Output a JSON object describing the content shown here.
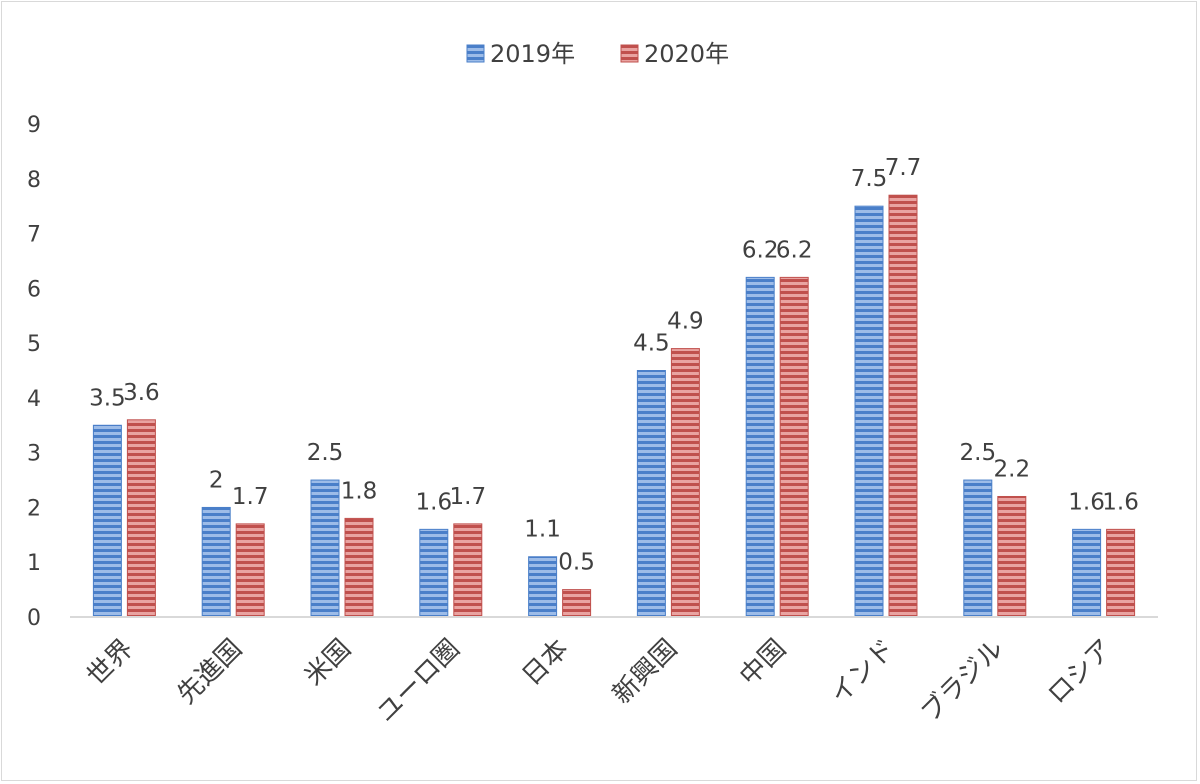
{
  "chart_data": {
    "type": "bar",
    "title": "",
    "xlabel": "",
    "ylabel": "",
    "ylim": [
      0,
      9
    ],
    "yticks": [
      0,
      1,
      2,
      3,
      4,
      5,
      6,
      7,
      8,
      9
    ],
    "legend_position": "top-center",
    "categories": [
      "世界",
      "先進国",
      "米国",
      "ユーロ圏",
      "日本",
      "新興国",
      "中国",
      "インド",
      "ブラジル",
      "ロシア"
    ],
    "series": [
      {
        "name": "2019年",
        "values": [
          3.5,
          2,
          2.5,
          1.6,
          1.1,
          4.5,
          6.2,
          7.5,
          2.5,
          1.6
        ],
        "color": "#4a7fc9"
      },
      {
        "name": "2020年",
        "values": [
          3.6,
          1.7,
          1.8,
          1.7,
          0.5,
          4.9,
          6.2,
          7.7,
          2.2,
          1.6
        ],
        "color": "#c0504d"
      }
    ]
  }
}
